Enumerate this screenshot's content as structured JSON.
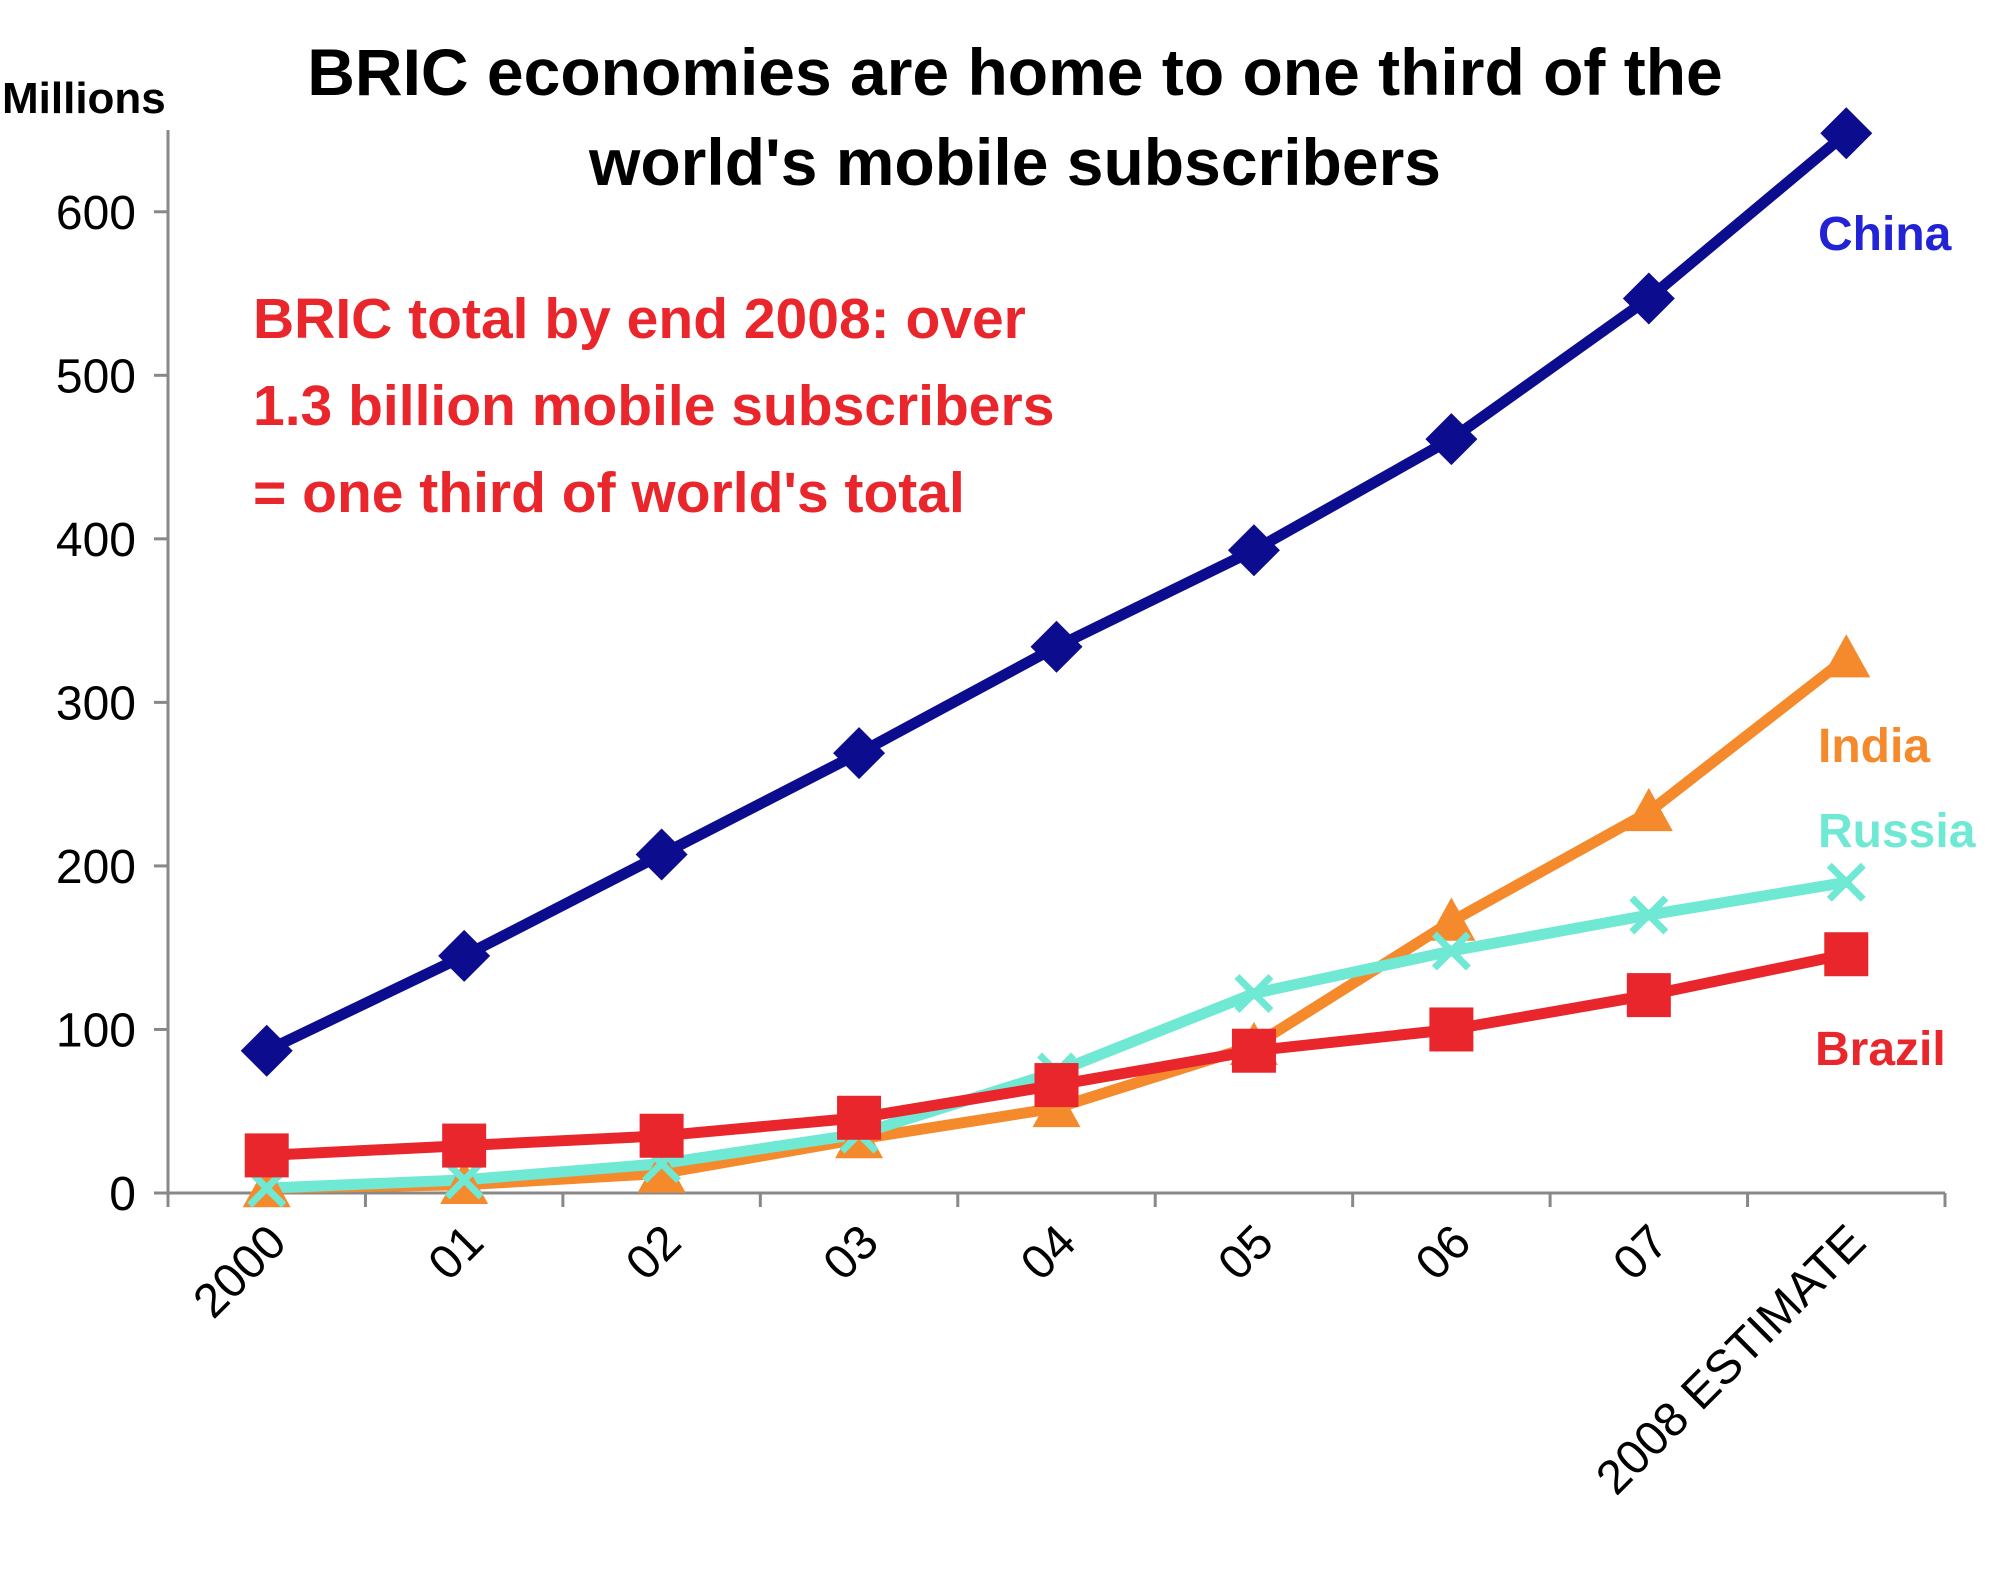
{
  "chart_data": {
    "type": "line",
    "title": "BRIC economies are home to one third of the world's mobile subscribers",
    "title_lines": [
      "BRIC economies are home to one third of the",
      "world's mobile subscribers"
    ],
    "ylabel": "Millions",
    "xlabel": "",
    "categories": [
      "2000",
      "01",
      "02",
      "03",
      "04",
      "05",
      "06",
      "07",
      "2008 ESTIMATE"
    ],
    "ylim": [
      0,
      650
    ],
    "yticks": [
      0,
      100,
      200,
      300,
      400,
      500,
      600
    ],
    "grid": false,
    "annotation_lines": [
      "BRIC total by end 2008: over",
      "1.3 billion mobile subscribers",
      "= one third of world's total"
    ],
    "annotation_color": "#e8262b",
    "series": [
      {
        "name": "China",
        "color": "#0b0c8e",
        "marker": "diamond",
        "values": [
          87,
          145,
          207,
          269,
          334,
          393,
          461,
          547,
          648
        ]
      },
      {
        "name": "India",
        "color": "#f58a2c",
        "marker": "triangle",
        "values": [
          3,
          5,
          12,
          33,
          52,
          90,
          166,
          233,
          327
        ]
      },
      {
        "name": "Russia",
        "color": "#6fe8d4",
        "marker": "x",
        "values": [
          3,
          8,
          18,
          36,
          74,
          122,
          148,
          170,
          190
        ]
      },
      {
        "name": "Brazil",
        "color": "#e8262b",
        "marker": "square",
        "values": [
          23,
          29,
          35,
          46,
          66,
          87,
          100,
          121,
          146
        ]
      }
    ]
  }
}
